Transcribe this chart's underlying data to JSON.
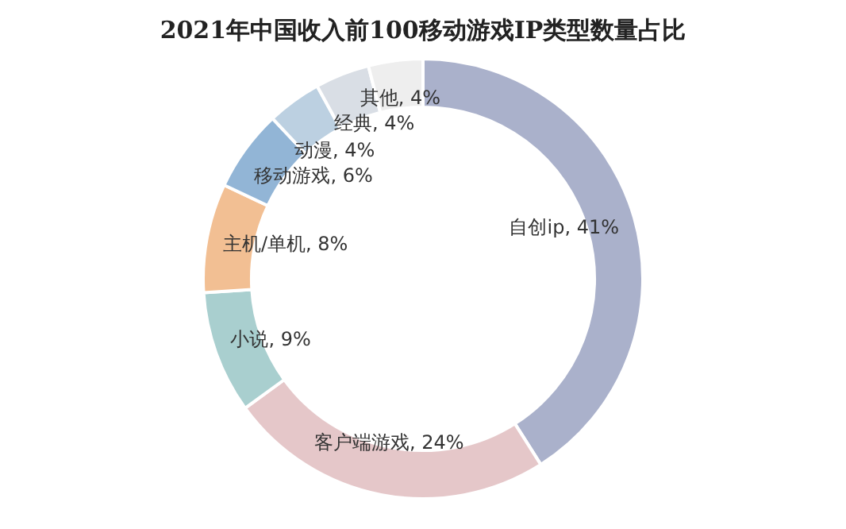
{
  "chart_data": {
    "type": "donut",
    "title": "2021年中国收入前100移动游戏IP类型数量占比",
    "categories": [
      "自创ip",
      "客户端游戏",
      "小说",
      "主机/单机",
      "移动游戏",
      "动漫",
      "经典",
      "其他"
    ],
    "values": [
      41,
      24,
      9,
      8,
      6,
      4,
      4,
      4
    ],
    "colors": [
      "#aab1cb",
      "#e5c7c9",
      "#a9cfcf",
      "#f2bf93",
      "#92b5d6",
      "#bcd0e1",
      "#d9dee5",
      "#eeeeee"
    ],
    "value_labels": [
      "41%",
      "24%",
      "9%",
      "8%",
      "6%",
      "4%",
      "4%",
      "4%"
    ],
    "legend": false
  }
}
